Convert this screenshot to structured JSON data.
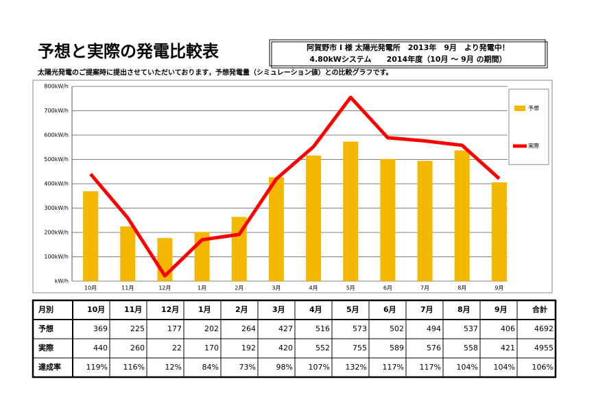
{
  "header": {
    "title": "予想と実際の発電比較表",
    "info_line1": "阿賀野市 I 様 太陽光発電所　2013年　9月　より発電中！",
    "info_line2": "4.80kWシステム　　2014年度（10月 ～ 9月 の期間）",
    "subtitle": "太陽光発電のご提案時に提出させていただいております，予想発電量（シミュレーション値）との比較グラフです。"
  },
  "chart_data": {
    "type": "bar",
    "categories": [
      "10月",
      "11月",
      "12月",
      "1月",
      "2月",
      "3月",
      "4月",
      "5月",
      "6月",
      "7月",
      "8月",
      "9月"
    ],
    "series": [
      {
        "name": "予想",
        "type": "bar",
        "color": "#f5b800",
        "values": [
          369,
          225,
          177,
          202,
          264,
          427,
          516,
          573,
          502,
          494,
          537,
          406
        ]
      },
      {
        "name": "実際",
        "type": "line",
        "color": "#ff0000",
        "values": [
          440,
          260,
          22,
          170,
          192,
          420,
          552,
          755,
          589,
          576,
          558,
          421
        ]
      }
    ],
    "ylim": [
      0,
      800
    ],
    "yticks": [
      {
        "value": 0,
        "label": "kW/h"
      },
      {
        "value": 100,
        "label": "100kW/h"
      },
      {
        "value": 200,
        "label": "200kW/h"
      },
      {
        "value": 300,
        "label": "300kW/h"
      },
      {
        "value": 400,
        "label": "400kW/h"
      },
      {
        "value": 500,
        "label": "500kW/h"
      },
      {
        "value": 600,
        "label": "600kW/h"
      },
      {
        "value": 700,
        "label": "700kW/h"
      },
      {
        "value": 800,
        "label": "800kW/h"
      }
    ],
    "grid": true,
    "legend": "right"
  },
  "table": {
    "header": [
      "月別",
      "10月",
      "11月",
      "12月",
      "1月",
      "2月",
      "3月",
      "4月",
      "5月",
      "6月",
      "7月",
      "8月",
      "9月",
      "合計"
    ],
    "rows": [
      [
        "予想",
        369,
        225,
        177,
        202,
        264,
        427,
        516,
        573,
        502,
        494,
        537,
        406,
        4692
      ],
      [
        "実際",
        440,
        260,
        22,
        170,
        192,
        420,
        552,
        755,
        589,
        576,
        558,
        421,
        4955
      ],
      [
        "達成率",
        "119%",
        "116%",
        "12%",
        "84%",
        "73%",
        "98%",
        "107%",
        "132%",
        "117%",
        "117%",
        "104%",
        "104%",
        "106%"
      ]
    ]
  }
}
